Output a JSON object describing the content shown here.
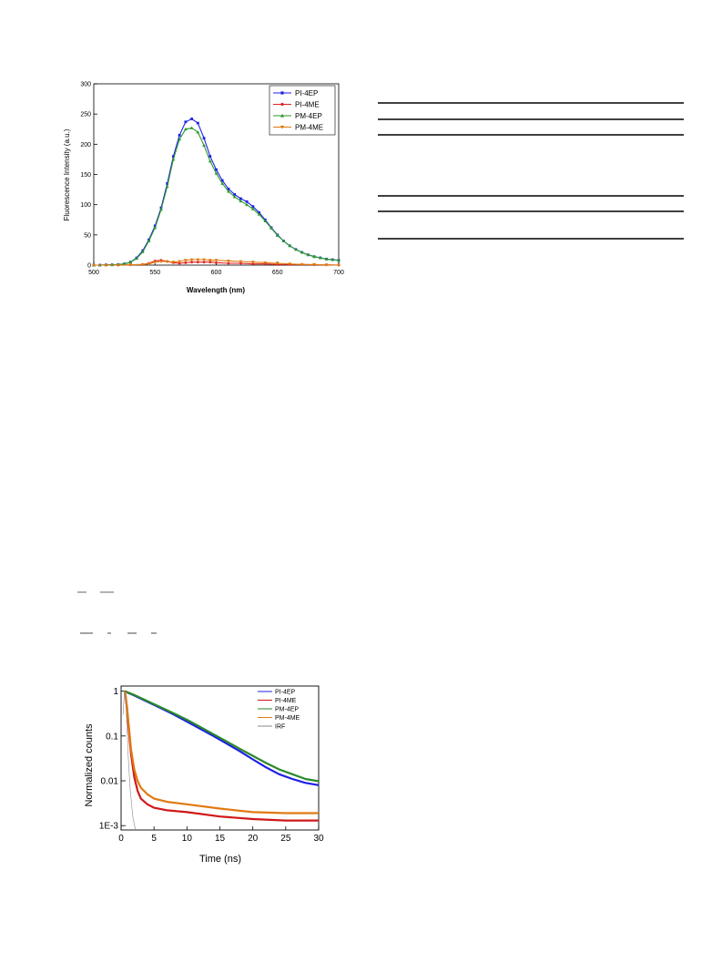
{
  "chart_data": [
    {
      "type": "line",
      "title": "",
      "xlabel": "Wavelength (nm)",
      "ylabel": "Fluorescence Intensity (a.u.)",
      "xlim": [
        500,
        700
      ],
      "ylim": [
        0,
        300
      ],
      "xticks": [
        500,
        550,
        600,
        650,
        700
      ],
      "yticks": [
        0,
        50,
        100,
        150,
        200,
        250,
        300
      ],
      "legend": "top-right",
      "grid": false,
      "series": [
        {
          "name": "PI-4EP",
          "color": "#1f1fe6",
          "marker": "square",
          "x": [
            500,
            505,
            510,
            515,
            520,
            525,
            530,
            535,
            540,
            545,
            550,
            555,
            560,
            565,
            570,
            575,
            580,
            585,
            590,
            595,
            600,
            605,
            610,
            615,
            620,
            625,
            630,
            635,
            640,
            645,
            650,
            655,
            660,
            665,
            670,
            675,
            680,
            685,
            690,
            695,
            700
          ],
          "y": [
            0,
            0,
            0.5,
            0.5,
            1,
            2,
            5,
            12,
            24,
            42,
            65,
            95,
            135,
            180,
            215,
            237,
            242,
            235,
            210,
            180,
            158,
            140,
            126,
            117,
            110,
            105,
            97,
            87,
            75,
            62,
            50,
            40,
            32,
            26,
            21,
            17,
            14,
            12,
            10,
            9,
            8
          ]
        },
        {
          "name": "PI-4ME",
          "color": "#e02020",
          "marker": "circle",
          "x": [
            500,
            510,
            520,
            530,
            540,
            545,
            550,
            555,
            560,
            565,
            570,
            575,
            580,
            585,
            590,
            595,
            600,
            610,
            620,
            630,
            640,
            650,
            660,
            670,
            680,
            690,
            700
          ],
          "y": [
            0,
            0,
            0,
            0.5,
            1,
            3,
            7,
            8,
            6,
            4,
            3,
            4,
            5,
            5,
            5,
            5,
            4,
            3,
            3,
            2,
            2,
            1,
            1,
            1,
            0.5,
            0.5,
            0
          ]
        },
        {
          "name": "PM-4EP",
          "color": "#2a9a2a",
          "marker": "triangle",
          "x": [
            500,
            505,
            510,
            515,
            520,
            525,
            530,
            535,
            540,
            545,
            550,
            555,
            560,
            565,
            570,
            575,
            580,
            585,
            590,
            595,
            600,
            605,
            610,
            615,
            620,
            625,
            630,
            635,
            640,
            645,
            650,
            655,
            660,
            665,
            670,
            675,
            680,
            685,
            690,
            695,
            700
          ],
          "y": [
            0,
            0,
            0.5,
            0.5,
            1,
            2,
            5,
            11,
            22,
            40,
            62,
            92,
            130,
            175,
            208,
            225,
            227,
            220,
            198,
            172,
            152,
            135,
            122,
            113,
            106,
            100,
            93,
            84,
            73,
            61,
            49,
            40,
            32,
            26,
            21,
            17,
            14,
            12,
            10,
            9,
            8
          ]
        },
        {
          "name": "PM-4ME",
          "color": "#e07a10",
          "marker": "triangle-down",
          "x": [
            500,
            510,
            520,
            530,
            540,
            545,
            550,
            555,
            560,
            565,
            570,
            575,
            580,
            585,
            590,
            595,
            600,
            610,
            620,
            630,
            640,
            650,
            660,
            670,
            680,
            690,
            700
          ],
          "y": [
            0,
            0,
            0,
            0.5,
            1,
            2,
            5,
            6,
            6,
            5,
            6,
            8,
            9,
            9,
            9,
            8,
            8,
            7,
            6,
            5,
            4,
            3,
            2,
            1,
            1,
            0.5,
            0
          ]
        }
      ]
    },
    {
      "type": "line",
      "title": "",
      "xlabel": "Time (ns)",
      "ylabel": "Normalized counts",
      "xlim": [
        0,
        30
      ],
      "ylim": [
        0.0008,
        1.3
      ],
      "yscale": "log",
      "xticks": [
        0,
        5,
        10,
        15,
        20,
        25,
        30
      ],
      "yticks": [
        0.001,
        0.01,
        0.1,
        1
      ],
      "yticklabels": [
        "1E-3",
        "0.01",
        "0.1",
        "1"
      ],
      "legend": "top-right",
      "grid": false,
      "series": [
        {
          "name": "PI-4EP",
          "color": "#1f1fe6",
          "x": [
            0.6,
            1,
            2,
            4,
            6,
            8,
            10,
            12,
            14,
            16,
            18,
            20,
            22,
            24,
            26,
            28,
            30
          ],
          "y": [
            1,
            0.93,
            0.8,
            0.58,
            0.42,
            0.3,
            0.21,
            0.145,
            0.1,
            0.068,
            0.046,
            0.03,
            0.02,
            0.014,
            0.011,
            0.009,
            0.008
          ]
        },
        {
          "name": "PI-4ME",
          "color": "#d01818",
          "x": [
            0.6,
            0.9,
            1.2,
            1.5,
            2,
            2.5,
            3,
            4,
            5,
            7,
            10,
            15,
            20,
            25,
            30
          ],
          "y": [
            1,
            0.4,
            0.12,
            0.04,
            0.012,
            0.006,
            0.004,
            0.003,
            0.0025,
            0.0022,
            0.002,
            0.0016,
            0.0014,
            0.0013,
            0.0013
          ]
        },
        {
          "name": "PM-4EP",
          "color": "#2a8a2a",
          "x": [
            0.6,
            1,
            2,
            4,
            6,
            8,
            10,
            12,
            14,
            16,
            18,
            20,
            22,
            24,
            26,
            28,
            30
          ],
          "y": [
            1,
            0.94,
            0.82,
            0.6,
            0.44,
            0.32,
            0.23,
            0.16,
            0.11,
            0.076,
            0.052,
            0.036,
            0.025,
            0.018,
            0.014,
            0.011,
            0.0098
          ]
        },
        {
          "name": "PM-4ME",
          "color": "#e07a10",
          "x": [
            0.6,
            0.9,
            1.2,
            1.5,
            2,
            2.5,
            3,
            4,
            5,
            7,
            10,
            15,
            20,
            25,
            30
          ],
          "y": [
            1,
            0.45,
            0.15,
            0.05,
            0.018,
            0.01,
            0.007,
            0.005,
            0.004,
            0.0034,
            0.003,
            0.0024,
            0.002,
            0.0019,
            0.0019
          ]
        },
        {
          "name": "IRF",
          "color": "#8a8a8a",
          "x": [
            0.3,
            0.5,
            0.7,
            0.9,
            1.1,
            1.4,
            1.8,
            2.2
          ],
          "y": [
            0.3,
            0.95,
            0.6,
            0.15,
            0.03,
            0.006,
            0.0015,
            0.0008
          ]
        }
      ]
    }
  ]
}
